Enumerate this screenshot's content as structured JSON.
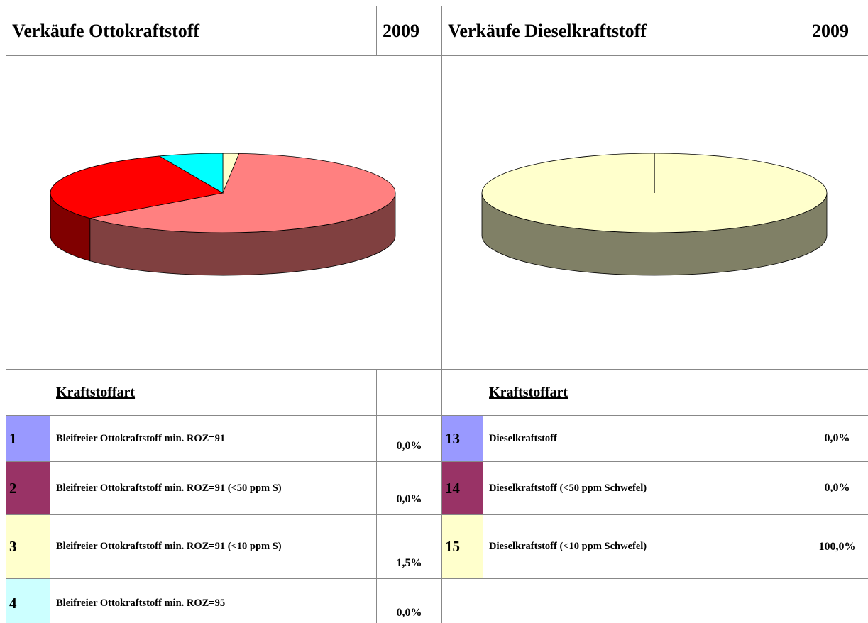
{
  "tables": [
    {
      "title": "Verkäufe Ottokraftstoff",
      "year": "2009",
      "pie": {
        "type": "pie",
        "values": [
          1.5,
          62.5,
          30,
          6
        ],
        "colors": [
          "#FFFFCC",
          "#FF8080",
          "#FF0000",
          "#00FFFF"
        ]
      },
      "column_header": "Kraftstoffart",
      "rows": [
        {
          "number": "1",
          "color": "#9999FF",
          "label": "Bleifreier Ottokraftstoff min. ROZ=91",
          "share": "0,0%"
        },
        {
          "number": "2",
          "color": "#993366",
          "label": "Bleifreier Ottokraftstoff min. ROZ=91 (<50 ppm S)",
          "share": "0,0%"
        },
        {
          "number": "3",
          "color": "#FFFFCC",
          "label": "Bleifreier Ottokraftstoff min. ROZ=91 (<10 ppm S)",
          "share": "1,5%"
        },
        {
          "number": "4",
          "color": "#CCFFFF",
          "label": "Bleifreier Ottokraftstoff min. ROZ=95",
          "share": "0,0%"
        }
      ]
    },
    {
      "title": "Verkäufe Dieselkraftstoff",
      "year": "2009",
      "pie": {
        "type": "pie",
        "values": [
          100
        ],
        "colors": [
          "#FFFFCC"
        ]
      },
      "column_header": "Kraftstoffart",
      "rows": [
        {
          "number": "13",
          "color": "#9999FF",
          "label": "Dieselkraftstoff",
          "share": "0,0%"
        },
        {
          "number": "14",
          "color": "#993366",
          "label": "Dieselkraftstoff (<50 ppm Schwefel)",
          "share": "0,0%"
        },
        {
          "number": "15",
          "color": "#FFFFCC",
          "label": "Dieselkraftstoff (<10 ppm Schwefel)",
          "share": "100,0%"
        }
      ]
    }
  ]
}
